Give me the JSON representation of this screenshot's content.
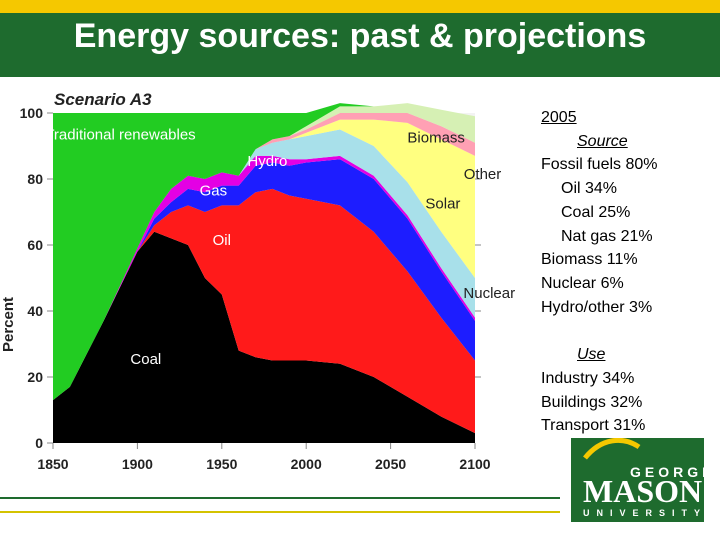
{
  "header": {
    "title": "Energy sources: past & projections"
  },
  "legend": {
    "year": "2005",
    "source_heading": "Source",
    "source_items": [
      "Fossil fuels 80%",
      "Oil 34%",
      "Coal 25%",
      "Nat gas 21%",
      "Biomass 11%",
      "Nuclear 6%",
      "Hydro/other 3%"
    ],
    "use_heading": "Use",
    "use_items": [
      "Industry 34%",
      "Buildings 32%",
      "Transport 31%"
    ]
  },
  "logo": {
    "top_text": "GEORGE",
    "main_text": "MASON",
    "bottom_text": "UNIVERSITY"
  },
  "colors": {
    "title_bar": "#1e6b2e",
    "top_stripe": "#f5c800",
    "coal": "#000000",
    "oil": "#ff1a1a",
    "gas": "#1d1dff",
    "hydro": "#e400e4",
    "nuclear": "#a8e0ea",
    "solar": "#ffff80",
    "other": "#ffa0b4",
    "biomass": "#d6f0b4",
    "trad": "#22cc22"
  },
  "chart_data": {
    "type": "area",
    "title": "Scenario A3",
    "xlabel": "",
    "ylabel": "Percent",
    "xlim": [
      1850,
      2100
    ],
    "ylim": [
      0,
      100
    ],
    "x_ticks": [
      "1850",
      "1900",
      "1950",
      "2000",
      "2050",
      "2100"
    ],
    "y_ticks": [
      "0",
      "20",
      "40",
      "60",
      "80",
      "100"
    ],
    "x": [
      1850,
      1860,
      1880,
      1900,
      1910,
      1920,
      1930,
      1940,
      1950,
      1960,
      1970,
      1980,
      1990,
      2000,
      2020,
      2040,
      2060,
      2080,
      2100
    ],
    "series": [
      {
        "name": "Coal",
        "values": [
          13,
          17,
          37,
          58,
          64,
          62,
          60,
          50,
          45,
          28,
          26,
          25,
          25,
          25,
          24,
          20,
          14,
          8,
          3
        ]
      },
      {
        "name": "Oil",
        "values": [
          0,
          0,
          0,
          0,
          2,
          8,
          12,
          20,
          27,
          44,
          50,
          52,
          50,
          49,
          48,
          44,
          38,
          30,
          22
        ]
      },
      {
        "name": "Gas",
        "values": [
          0,
          0,
          0,
          0,
          2,
          3,
          5,
          6,
          6,
          6,
          8,
          8,
          9,
          11,
          14,
          16,
          16,
          14,
          12
        ]
      },
      {
        "name": "Hydro",
        "values": [
          0,
          0,
          0,
          1,
          2,
          4,
          4,
          4,
          4,
          3,
          3,
          2,
          2,
          1,
          1,
          1,
          1,
          1,
          1
        ]
      },
      {
        "name": "Nuclear",
        "values": [
          0,
          0,
          0,
          0,
          0,
          0,
          0,
          0,
          0,
          0,
          2,
          4,
          6,
          7,
          8,
          9,
          10,
          11,
          12
        ]
      },
      {
        "name": "Solar",
        "values": [
          0,
          0,
          0,
          0,
          0,
          0,
          0,
          0,
          0,
          0,
          0,
          0,
          0,
          1,
          3,
          8,
          18,
          28,
          37
        ]
      },
      {
        "name": "Other",
        "values": [
          0,
          0,
          0,
          0,
          0,
          0,
          0,
          0,
          0,
          0,
          0,
          1,
          1,
          1,
          2,
          2,
          3,
          4,
          4
        ]
      },
      {
        "name": "Biomass",
        "values": [
          0,
          0,
          0,
          0,
          0,
          0,
          0,
          0,
          0,
          0,
          0,
          0,
          0,
          1,
          2,
          2,
          3,
          5,
          8
        ]
      },
      {
        "name": "Traditional renewables",
        "values": [
          87,
          83,
          63,
          41,
          30,
          23,
          19,
          20,
          18,
          19,
          11,
          8,
          7,
          4,
          1,
          0,
          0,
          0,
          0
        ]
      }
    ],
    "series_labels": [
      "Coal",
      "Oil",
      "Gas",
      "Hydro",
      "Nuclear",
      "Solar",
      "Other",
      "Biomass",
      "Traditional renewables"
    ]
  }
}
